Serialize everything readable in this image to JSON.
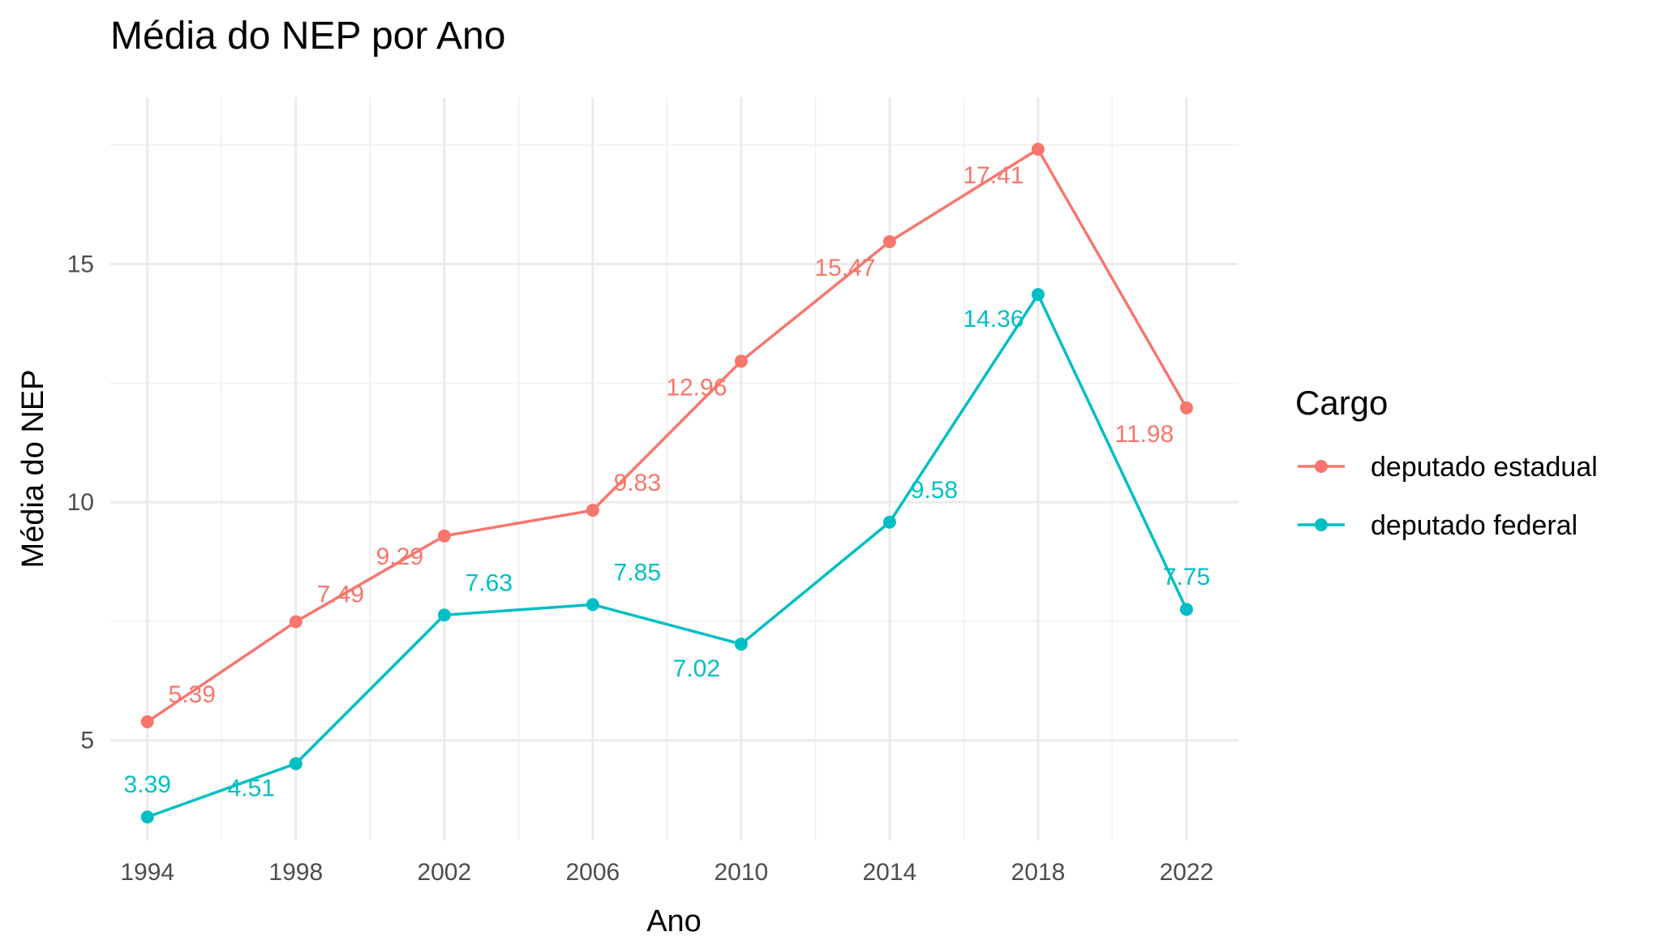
{
  "chart_data": {
    "type": "line",
    "title": "Média do NEP por Ano",
    "xlabel": "Ano",
    "ylabel": "Média do NEP",
    "x": [
      1994,
      1998,
      2002,
      2006,
      2010,
      2014,
      2018,
      2022
    ],
    "x_ticks": [
      "1994",
      "1998",
      "2002",
      "2006",
      "2010",
      "2014",
      "2018",
      "2022"
    ],
    "y_ticks": [
      "5",
      "10",
      "15"
    ],
    "xlim": [
      1993,
      2023.4
    ],
    "ylim": [
      2.9,
      18.5
    ],
    "grid": true,
    "legend": {
      "title": "Cargo",
      "position": "right"
    },
    "series": [
      {
        "name": "deputado estadual",
        "color": "#F8766D",
        "values": [
          5.39,
          7.49,
          9.29,
          9.83,
          12.96,
          15.47,
          17.41,
          11.98
        ],
        "labels": [
          "5.39",
          "7.49",
          "9.29",
          "9.83",
          "12.96",
          "15.47",
          "17.41",
          "11.98"
        ]
      },
      {
        "name": "deputado federal",
        "color": "#00BFC4",
        "values": [
          3.39,
          4.51,
          7.63,
          7.85,
          7.02,
          9.58,
          14.36,
          7.75
        ],
        "labels": [
          "3.39",
          "4.51",
          "7.63",
          "7.85",
          "7.02",
          "9.58",
          "14.36",
          "7.75"
        ]
      }
    ]
  }
}
